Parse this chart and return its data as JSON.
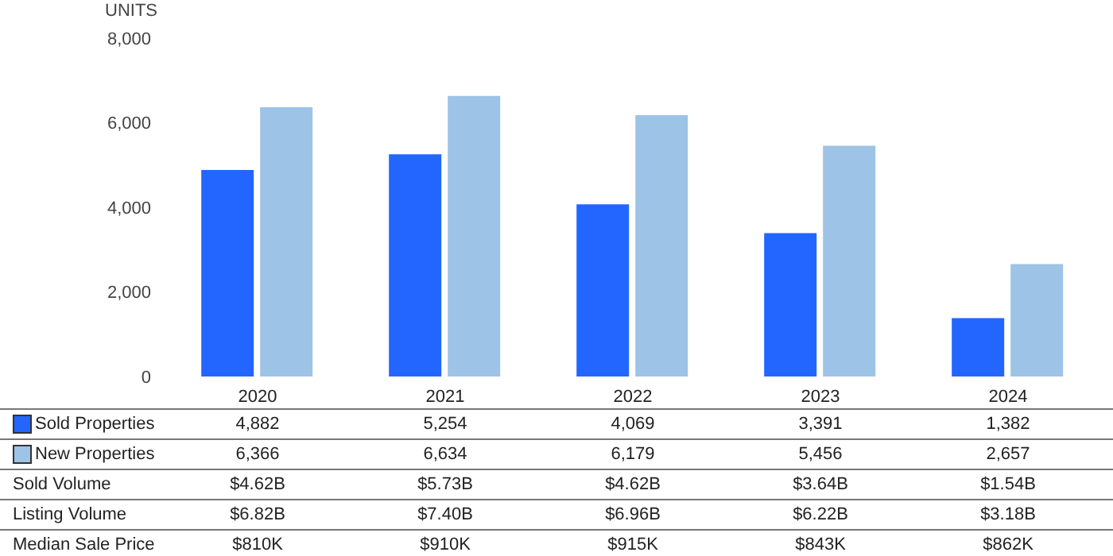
{
  "chart_data": {
    "type": "bar",
    "ylabel": "UNITS",
    "categories": [
      "2020",
      "2021",
      "2022",
      "2023",
      "2024"
    ],
    "series": [
      {
        "name": "Sold Properties",
        "color": "#2266ff",
        "values": [
          4882,
          5254,
          4069,
          3391,
          1382
        ],
        "value_labels": [
          "4,882",
          "5,254",
          "4,069",
          "3,391",
          "1,382"
        ]
      },
      {
        "name": "New Properties",
        "color": "#9dc3e6",
        "values": [
          6366,
          6634,
          6179,
          5456,
          2657
        ],
        "value_labels": [
          "6,366",
          "6,634",
          "6,179",
          "5,456",
          "2,657"
        ]
      }
    ],
    "ylim": [
      0,
      8000
    ],
    "yticks": [
      {
        "value": 0,
        "label": "0"
      },
      {
        "value": 2000,
        "label": "2,000"
      },
      {
        "value": 4000,
        "label": "4,000"
      },
      {
        "value": 6000,
        "label": "6,000"
      },
      {
        "value": 8000,
        "label": "8,000"
      }
    ],
    "grid": false,
    "legend": "bottom",
    "annotations": [
      "Sold Volume",
      "$4.62B",
      "$5.73B",
      "$4.62B",
      "$3.64B",
      "$1.54B",
      "Listing Volume",
      "$6.82B",
      "$7.40B",
      "$6.96B",
      "$6.22B",
      "$3.18B",
      "Median Sale Price",
      "$810K",
      "$910K",
      "$915K",
      "$843K",
      "$862K"
    ]
  }
}
